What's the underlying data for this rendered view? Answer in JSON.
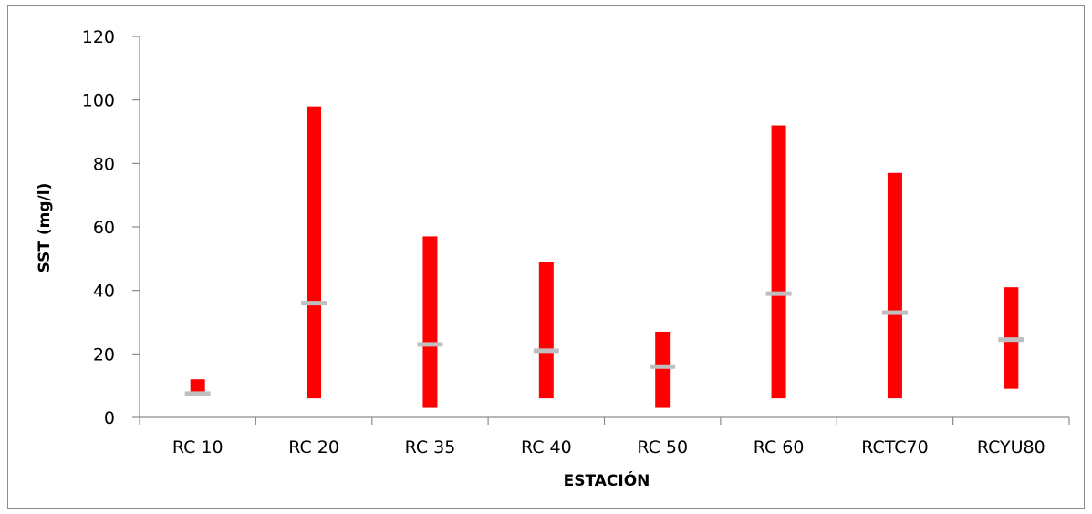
{
  "chart_data": {
    "type": "range-bar",
    "title": "",
    "xlabel": "ESTACIÓN",
    "ylabel": "SST (mg/l)",
    "ylim": [
      0,
      120
    ],
    "yticks": [
      "0",
      "20",
      "40",
      "60",
      "80",
      "100",
      "120"
    ],
    "categories": [
      "RC 10",
      "RC 20",
      "RC 35",
      "RC 40",
      "RC 50",
      "RC 60",
      "RCTC70",
      "RCYU80"
    ],
    "min": [
      7,
      6,
      3,
      6,
      3,
      6,
      6,
      9
    ],
    "max": [
      12,
      98,
      57,
      49,
      27,
      92,
      77,
      41
    ],
    "median": [
      7.5,
      36,
      23,
      21,
      16,
      39,
      33,
      24.5
    ],
    "grid": false,
    "colors": {
      "range_bar": "#ff0000",
      "median_marker": "#bfbfbf",
      "axis": "#8c8c8c"
    }
  }
}
